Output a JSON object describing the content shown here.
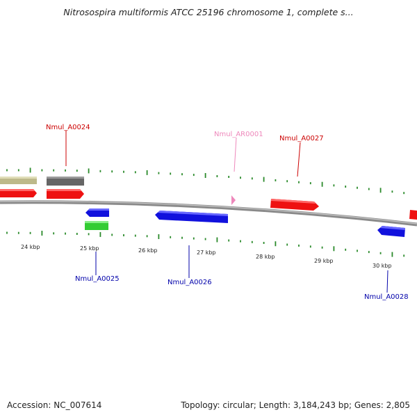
{
  "title": "Nitrosospira multiformis ATCC 25196 chromosome 1, complete s...",
  "footer": {
    "accession": "Accession: NC_007614",
    "summary": "Topology: circular; Length: 3,184,243 bp; Genes: 2,805"
  },
  "colors": {
    "backbone": "#8a8a8a",
    "tick": "#2a8a2a",
    "red": "#ee1111",
    "blue": "#1111dd",
    "green": "#33cc33",
    "gray": "#666666",
    "khaki": "#bdb98a",
    "pink": "#ee88bb",
    "label_red": "#cc0000",
    "label_blue": "#0000aa",
    "label_pink": "#ee88bb"
  },
  "scale": {
    "ticks": [
      {
        "label": "24 kbp",
        "kbp": 24
      },
      {
        "label": "25 kbp",
        "kbp": 25
      },
      {
        "label": "26 kbp",
        "kbp": 26
      },
      {
        "label": "27 kbp",
        "kbp": 27
      },
      {
        "label": "28 kbp",
        "kbp": 28
      },
      {
        "label": "29 kbp",
        "kbp": 29
      },
      {
        "label": "30 kbp",
        "kbp": 30
      }
    ]
  },
  "gene_labels": [
    {
      "name": "Nmul_A0024",
      "color": "label_red"
    },
    {
      "name": "Nmul_AR0001",
      "color": "label_pink"
    },
    {
      "name": "Nmul_A0027",
      "color": "label_red"
    },
    {
      "name": "Nmul_A0025",
      "color": "label_blue"
    },
    {
      "name": "Nmul_A0026",
      "color": "label_blue"
    },
    {
      "name": "Nmul_A0028",
      "color": "label_blue"
    }
  ]
}
